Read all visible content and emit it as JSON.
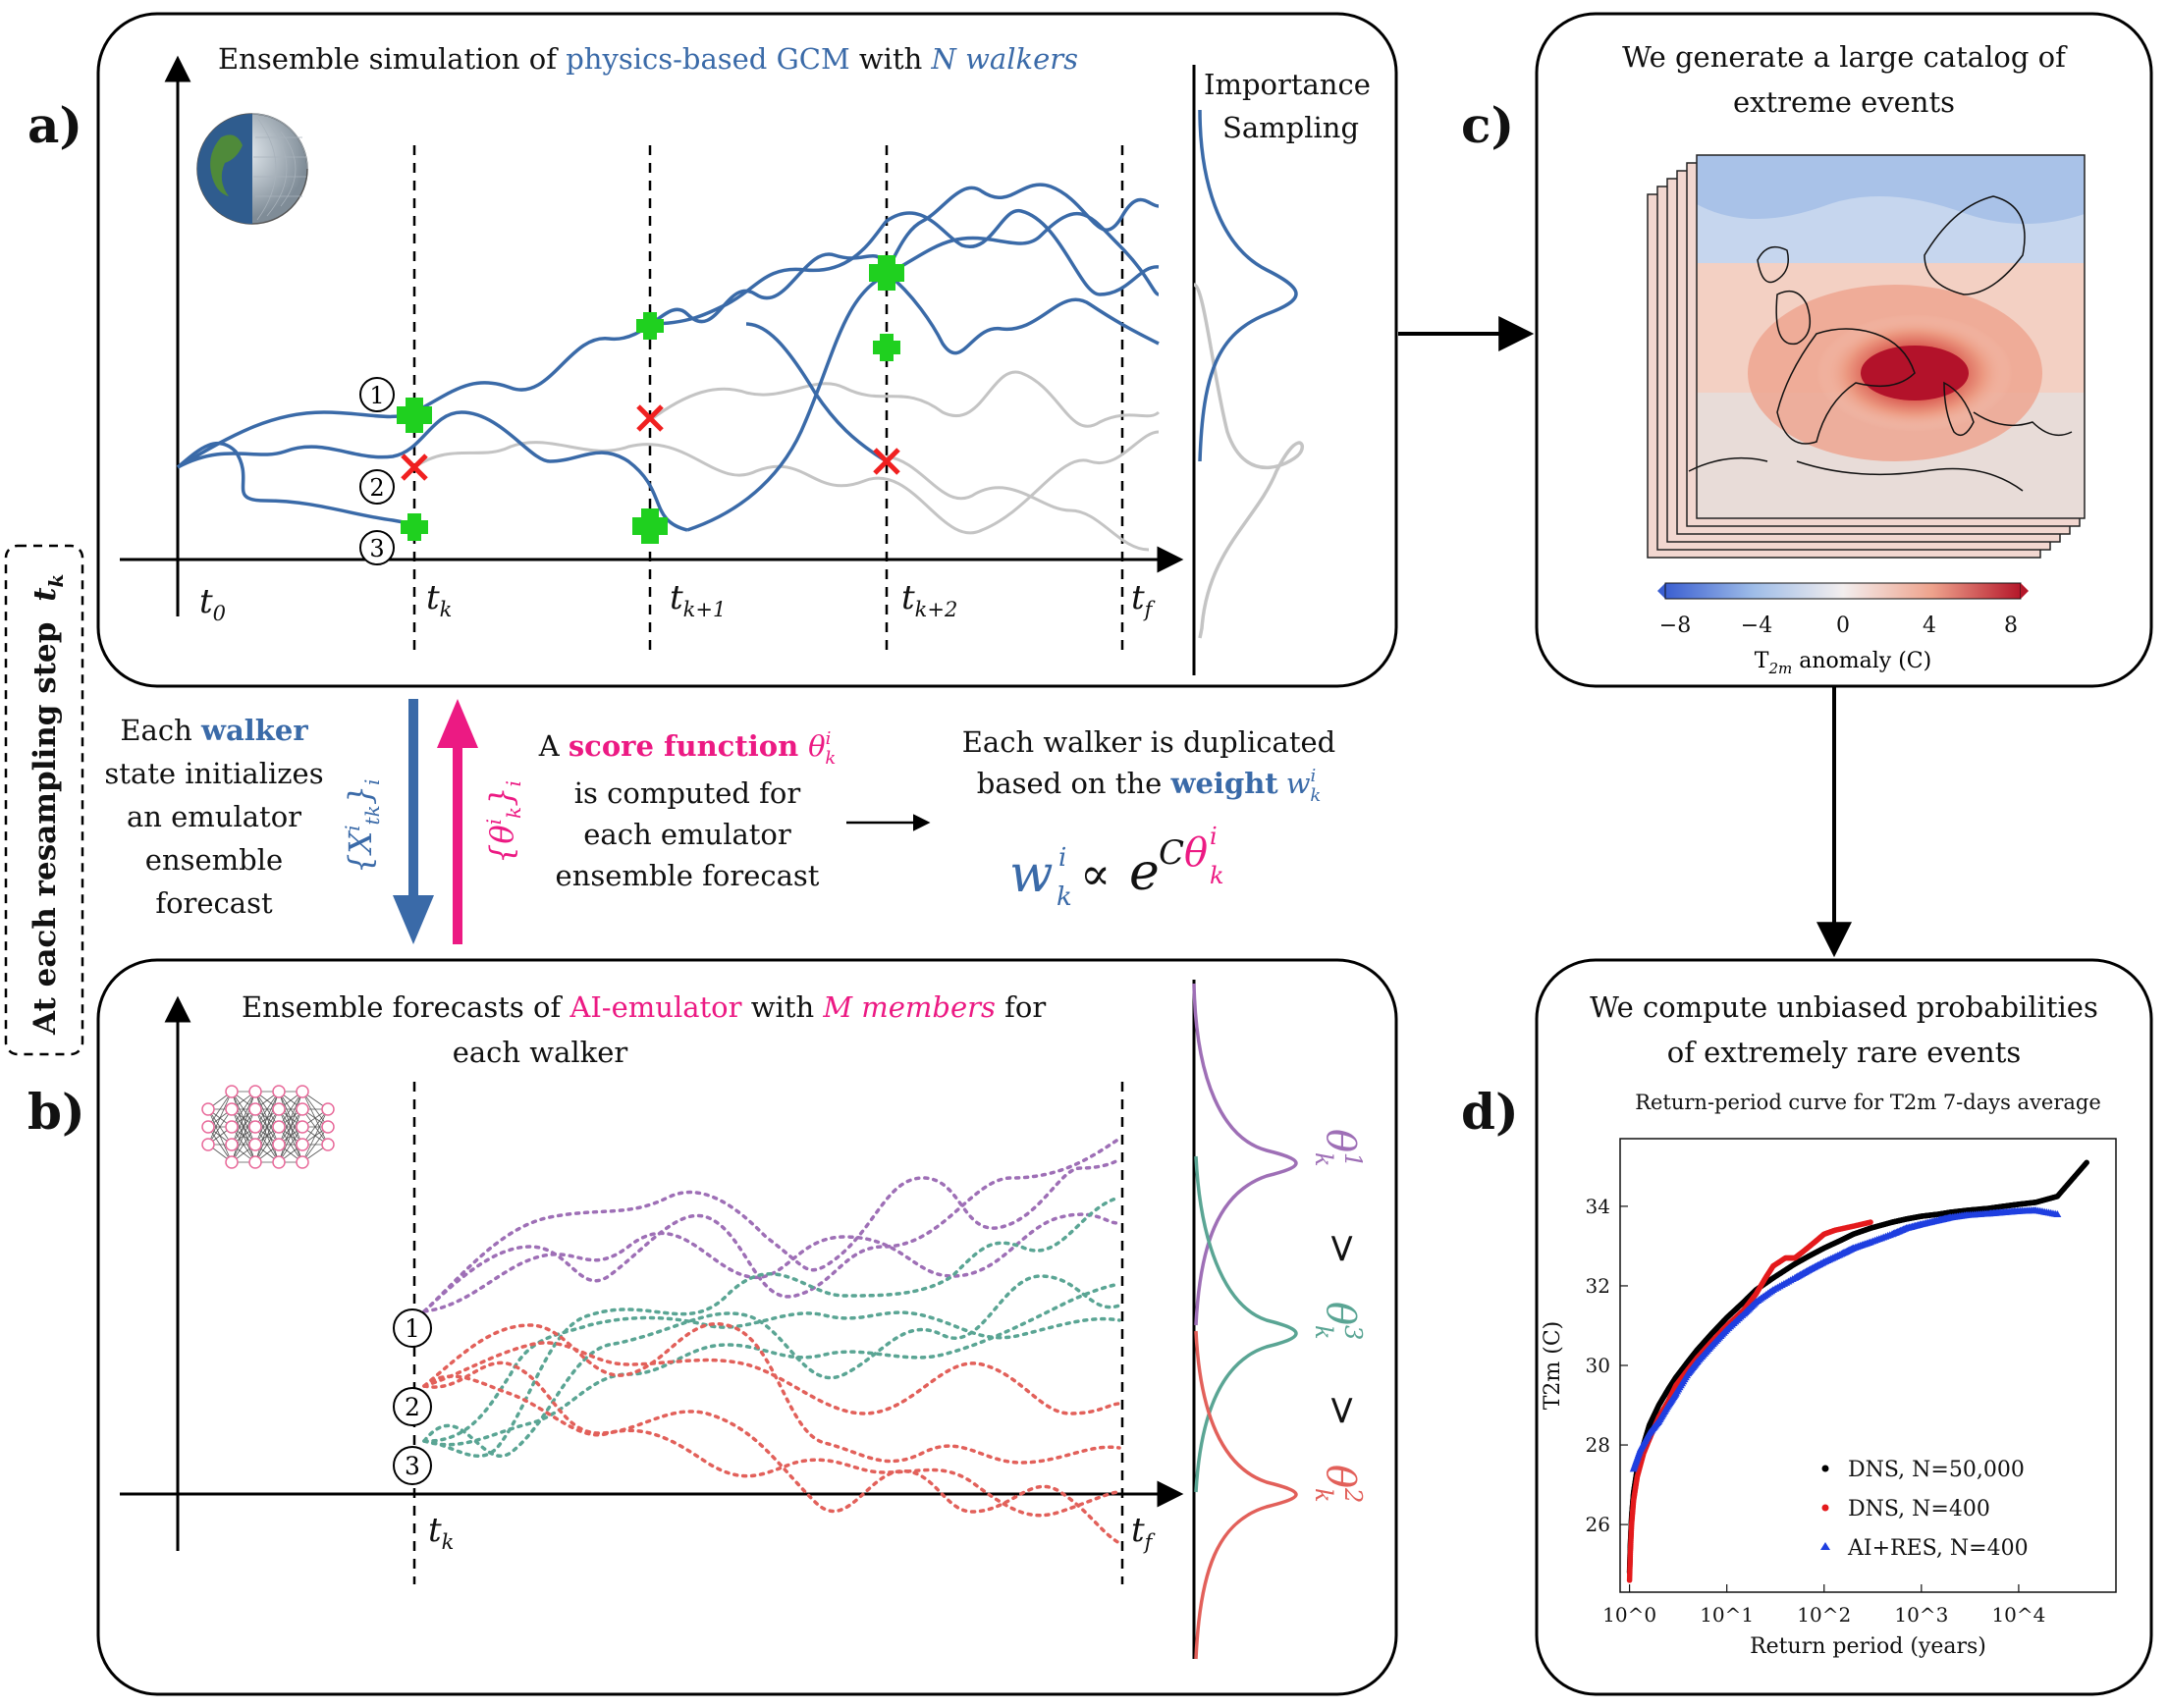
{
  "panel_labels": {
    "a": "a)",
    "b": "b)",
    "c": "c)",
    "d": "d)"
  },
  "side_label": {
    "text": "At each resampling step",
    "symbol": "t",
    "sub": "k"
  },
  "panel_a": {
    "title_pre": "Ensemble simulation of ",
    "title_blue": "physics-based GCM",
    "title_mid": " with ",
    "title_blue2": "N walkers",
    "is_label": [
      "Importance",
      "Sampling"
    ],
    "ticks": [
      {
        "t": "t",
        "sub": "0"
      },
      {
        "t": "t",
        "sub": "k"
      },
      {
        "t": "t",
        "sub": "k+1"
      },
      {
        "t": "t",
        "sub": "k+2"
      },
      {
        "t": "t",
        "sub": "f"
      }
    ],
    "walkers": [
      "1",
      "2",
      "3"
    ]
  },
  "panel_b": {
    "title_pre": "Ensemble forecasts of ",
    "title_pink": "AI-emulator",
    "title_mid": " with ",
    "title_pink2": "M members",
    "title_post": " for",
    "title_line2": "each walker",
    "ticks": [
      {
        "t": "t",
        "sub": "k"
      },
      {
        "t": "t",
        "sub": "f"
      }
    ],
    "members": [
      "1",
      "2",
      "3"
    ],
    "thetas": [
      "θ",
      "θ",
      "θ"
    ],
    "theta_sups": [
      "1",
      "3",
      "2"
    ],
    "gt": ">",
    "colors": {
      "purple": "#9e6fb6",
      "teal": "#5aa594",
      "red": "#e2605a"
    }
  },
  "middle": {
    "left_lines": [
      "Each",
      "walker",
      "state initializes",
      "an emulator",
      "ensemble",
      "forecast"
    ],
    "down_arrow": "{X",
    "up_arrow": "{θ",
    "score_lines": [
      "A",
      "score function",
      "is computed for",
      "each emulator",
      "ensemble forecast"
    ],
    "dup_lines": [
      "Each walker is duplicated",
      "based on the",
      "weight"
    ],
    "formula": {
      "w": "w",
      "prop": "∝",
      "e": "e",
      "c": "C",
      "theta": "θ"
    }
  },
  "panel_c": {
    "title": [
      "We generate a large catalog of",
      "extreme events"
    ],
    "cbar_ticks": [
      "−8",
      "−4",
      "0",
      "4",
      "8"
    ],
    "cbar_label": "T",
    "cbar_sub": "2m",
    "cbar_unit": " anomaly (C)"
  },
  "panel_d": {
    "title": [
      "We compute unbiased probabilities",
      "of extremely rare events"
    ]
  },
  "chart_data": {
    "type": "scatter",
    "title": "Return-period curve for T2m 7-days average",
    "xlabel": "Return period (years)",
    "ylabel": "T2m (C)",
    "xscale": "log",
    "xlim": [
      0.8,
      100000
    ],
    "ylim": [
      24.3,
      35.7
    ],
    "xticks": [
      "10^0",
      "10^1",
      "10^2",
      "10^3",
      "10^4"
    ],
    "yticks": [
      26,
      28,
      30,
      32,
      34
    ],
    "legend_position": "lower-right",
    "series": [
      {
        "name": "DNS, N=50,000",
        "color": "#000000",
        "marker": "circle",
        "x": [
          1.0,
          1.02,
          1.05,
          1.1,
          1.2,
          1.35,
          1.6,
          2,
          2.5,
          3,
          4,
          5,
          7,
          10,
          15,
          20,
          30,
          50,
          70,
          100,
          150,
          200,
          300,
          500,
          700,
          1000,
          1500,
          2000,
          3000,
          5000,
          7000,
          10000,
          15000,
          25000,
          50000
        ],
        "y": [
          24.8,
          25.5,
          26.2,
          26.8,
          27.4,
          27.9,
          28.5,
          29.0,
          29.4,
          29.7,
          30.1,
          30.4,
          30.8,
          31.2,
          31.6,
          31.9,
          32.2,
          32.55,
          32.75,
          32.95,
          33.15,
          33.3,
          33.45,
          33.6,
          33.68,
          33.75,
          33.8,
          33.85,
          33.9,
          33.95,
          34.0,
          34.05,
          34.1,
          34.25,
          35.1
        ]
      },
      {
        "name": "DNS, N=400",
        "color": "#e41a1c",
        "marker": "circle",
        "x": [
          1.0,
          1.02,
          1.05,
          1.1,
          1.2,
          1.4,
          1.7,
          2,
          2.5,
          3,
          4,
          5,
          7,
          10,
          15,
          20,
          25,
          30,
          40,
          50,
          60,
          80,
          100,
          130,
          200,
          300
        ],
        "y": [
          24.6,
          25.3,
          26.0,
          26.6,
          27.2,
          27.8,
          28.3,
          28.7,
          29.1,
          29.5,
          29.9,
          30.2,
          30.6,
          31.0,
          31.4,
          31.8,
          32.2,
          32.5,
          32.7,
          32.7,
          32.85,
          33.1,
          33.3,
          33.4,
          33.5,
          33.6
        ]
      },
      {
        "name": "AI+RES, N=400",
        "color": "#1f3fe0",
        "marker": "triangle",
        "x": [
          1.1,
          1.3,
          1.6,
          2,
          2.5,
          3,
          4,
          5,
          7,
          10,
          15,
          20,
          30,
          50,
          70,
          100,
          150,
          200,
          300,
          500,
          700,
          1000,
          1500,
          2000,
          3000,
          5000,
          7000,
          10000,
          15000,
          25000
        ],
        "y": [
          27.4,
          27.9,
          28.3,
          28.6,
          29.0,
          29.3,
          29.8,
          30.1,
          30.5,
          30.9,
          31.3,
          31.6,
          31.9,
          32.2,
          32.4,
          32.6,
          32.8,
          32.95,
          33.1,
          33.3,
          33.45,
          33.55,
          33.65,
          33.72,
          33.78,
          33.82,
          33.85,
          33.88,
          33.9,
          33.8
        ]
      }
    ]
  }
}
